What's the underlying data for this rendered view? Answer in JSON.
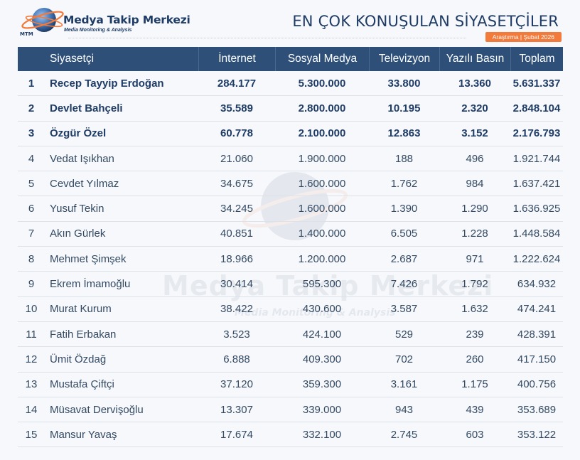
{
  "brand": {
    "title": "Medya Takip Merkezi",
    "subtitle": "Media Monitoring & Analysis",
    "logo_abbr": "MTM"
  },
  "report": {
    "title": "EN ÇOK KONUŞULAN SİYASETÇİLER",
    "badge": "Araştırma | Şubat 2026"
  },
  "colors": {
    "header_bg": "#2e4f78",
    "accent": "#f27a3a",
    "brand": "#1f3c66"
  },
  "table": {
    "headers": [
      "",
      "Siyasetçi",
      "İnternet",
      "Sosyal Medya",
      "Televizyon",
      "Yazılı Basın",
      "Toplam"
    ],
    "rows": [
      {
        "rank": "1",
        "name": "Recep Tayyip Erdoğan",
        "internet": "284.177",
        "sosyal": "5.300.000",
        "tv": "33.800",
        "yazili": "13.360",
        "toplam": "5.631.337",
        "highlight": true
      },
      {
        "rank": "2",
        "name": "Devlet Bahçeli",
        "internet": "35.589",
        "sosyal": "2.800.000",
        "tv": "10.195",
        "yazili": "2.320",
        "toplam": "2.848.104",
        "highlight": true
      },
      {
        "rank": "3",
        "name": "Özgür Özel",
        "internet": "60.778",
        "sosyal": "2.100.000",
        "tv": "12.863",
        "yazili": "3.152",
        "toplam": "2.176.793",
        "highlight": true
      },
      {
        "rank": "4",
        "name": "Vedat Işıkhan",
        "internet": "21.060",
        "sosyal": "1.900.000",
        "tv": "188",
        "yazili": "496",
        "toplam": "1.921.744",
        "highlight": false
      },
      {
        "rank": "5",
        "name": "Cevdet Yılmaz",
        "internet": "34.675",
        "sosyal": "1.600.000",
        "tv": "1.762",
        "yazili": "984",
        "toplam": "1.637.421",
        "highlight": false
      },
      {
        "rank": "6",
        "name": "Yusuf Tekin",
        "internet": "34.245",
        "sosyal": "1.600.000",
        "tv": "1.390",
        "yazili": "1.290",
        "toplam": "1.636.925",
        "highlight": false
      },
      {
        "rank": "7",
        "name": "Akın Gürlek",
        "internet": "40.851",
        "sosyal": "1.400.000",
        "tv": "6.505",
        "yazili": "1.228",
        "toplam": "1.448.584",
        "highlight": false
      },
      {
        "rank": "8",
        "name": "Mehmet Şimşek",
        "internet": "18.966",
        "sosyal": "1.200.000",
        "tv": "2.687",
        "yazili": "971",
        "toplam": "1.222.624",
        "highlight": false
      },
      {
        "rank": "9",
        "name": "Ekrem İmamoğlu",
        "internet": "30.414",
        "sosyal": "595.300",
        "tv": "7.426",
        "yazili": "1.792",
        "toplam": "634.932",
        "highlight": false
      },
      {
        "rank": "10",
        "name": "Murat Kurum",
        "internet": "38.422",
        "sosyal": "430.600",
        "tv": "3.587",
        "yazili": "1.632",
        "toplam": "474.241",
        "highlight": false
      },
      {
        "rank": "11",
        "name": "Fatih Erbakan",
        "internet": "3.523",
        "sosyal": "424.100",
        "tv": "529",
        "yazili": "239",
        "toplam": "428.391",
        "highlight": false
      },
      {
        "rank": "12",
        "name": "Ümit Özdağ",
        "internet": "6.888",
        "sosyal": "409.300",
        "tv": "702",
        "yazili": "260",
        "toplam": "417.150",
        "highlight": false
      },
      {
        "rank": "13",
        "name": "Mustafa Çiftçi",
        "internet": "37.120",
        "sosyal": "359.300",
        "tv": "3.161",
        "yazili": "1.175",
        "toplam": "400.756",
        "highlight": false
      },
      {
        "rank": "14",
        "name": "Müsavat Dervişoğlu",
        "internet": "13.307",
        "sosyal": "339.000",
        "tv": "943",
        "yazili": "439",
        "toplam": "353.689",
        "highlight": false
      },
      {
        "rank": "15",
        "name": "Mansur Yavaş",
        "internet": "17.674",
        "sosyal": "332.100",
        "tv": "2.745",
        "yazili": "603",
        "toplam": "353.122",
        "highlight": false
      }
    ]
  }
}
